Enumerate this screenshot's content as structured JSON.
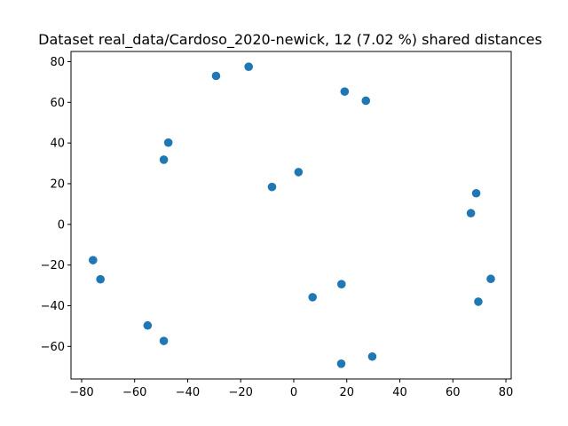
{
  "chart_data": {
    "type": "scatter",
    "title": "Dataset real_data/Cardoso_2020-newick, 12 (7.02 %) shared distances",
    "xlabel": "",
    "ylabel": "",
    "xlim": [
      -84,
      82
    ],
    "ylim": [
      -76,
      85
    ],
    "xticks": [
      -80,
      -60,
      -40,
      -20,
      0,
      20,
      40,
      60,
      80
    ],
    "yticks": [
      -60,
      -40,
      -20,
      0,
      20,
      40,
      60,
      80
    ],
    "xtick_labels": [
      "−80",
      "−60",
      "−40",
      "−20",
      "0",
      "20",
      "40",
      "60",
      "80"
    ],
    "ytick_labels": [
      "−60",
      "−40",
      "−20",
      "0",
      "20",
      "40",
      "60",
      "80"
    ],
    "grid": false,
    "marker_color": "#1f77b4",
    "series": [
      {
        "x": [
          -29.3,
          -17.0,
          19.2,
          27.2,
          -47.3,
          -49.0,
          1.8,
          -8.2,
          68.8,
          66.8,
          -75.7,
          -72.9,
          18.0,
          7.1,
          74.3,
          69.6,
          -55.1,
          -49.0,
          29.6,
          17.9
        ],
        "y": [
          73.0,
          77.5,
          65.3,
          60.8,
          40.2,
          31.8,
          25.7,
          18.4,
          15.3,
          5.5,
          -17.6,
          -27.0,
          -29.4,
          -35.8,
          -26.8,
          -38.0,
          -49.7,
          -57.3,
          -65.0,
          -68.5
        ]
      }
    ]
  }
}
